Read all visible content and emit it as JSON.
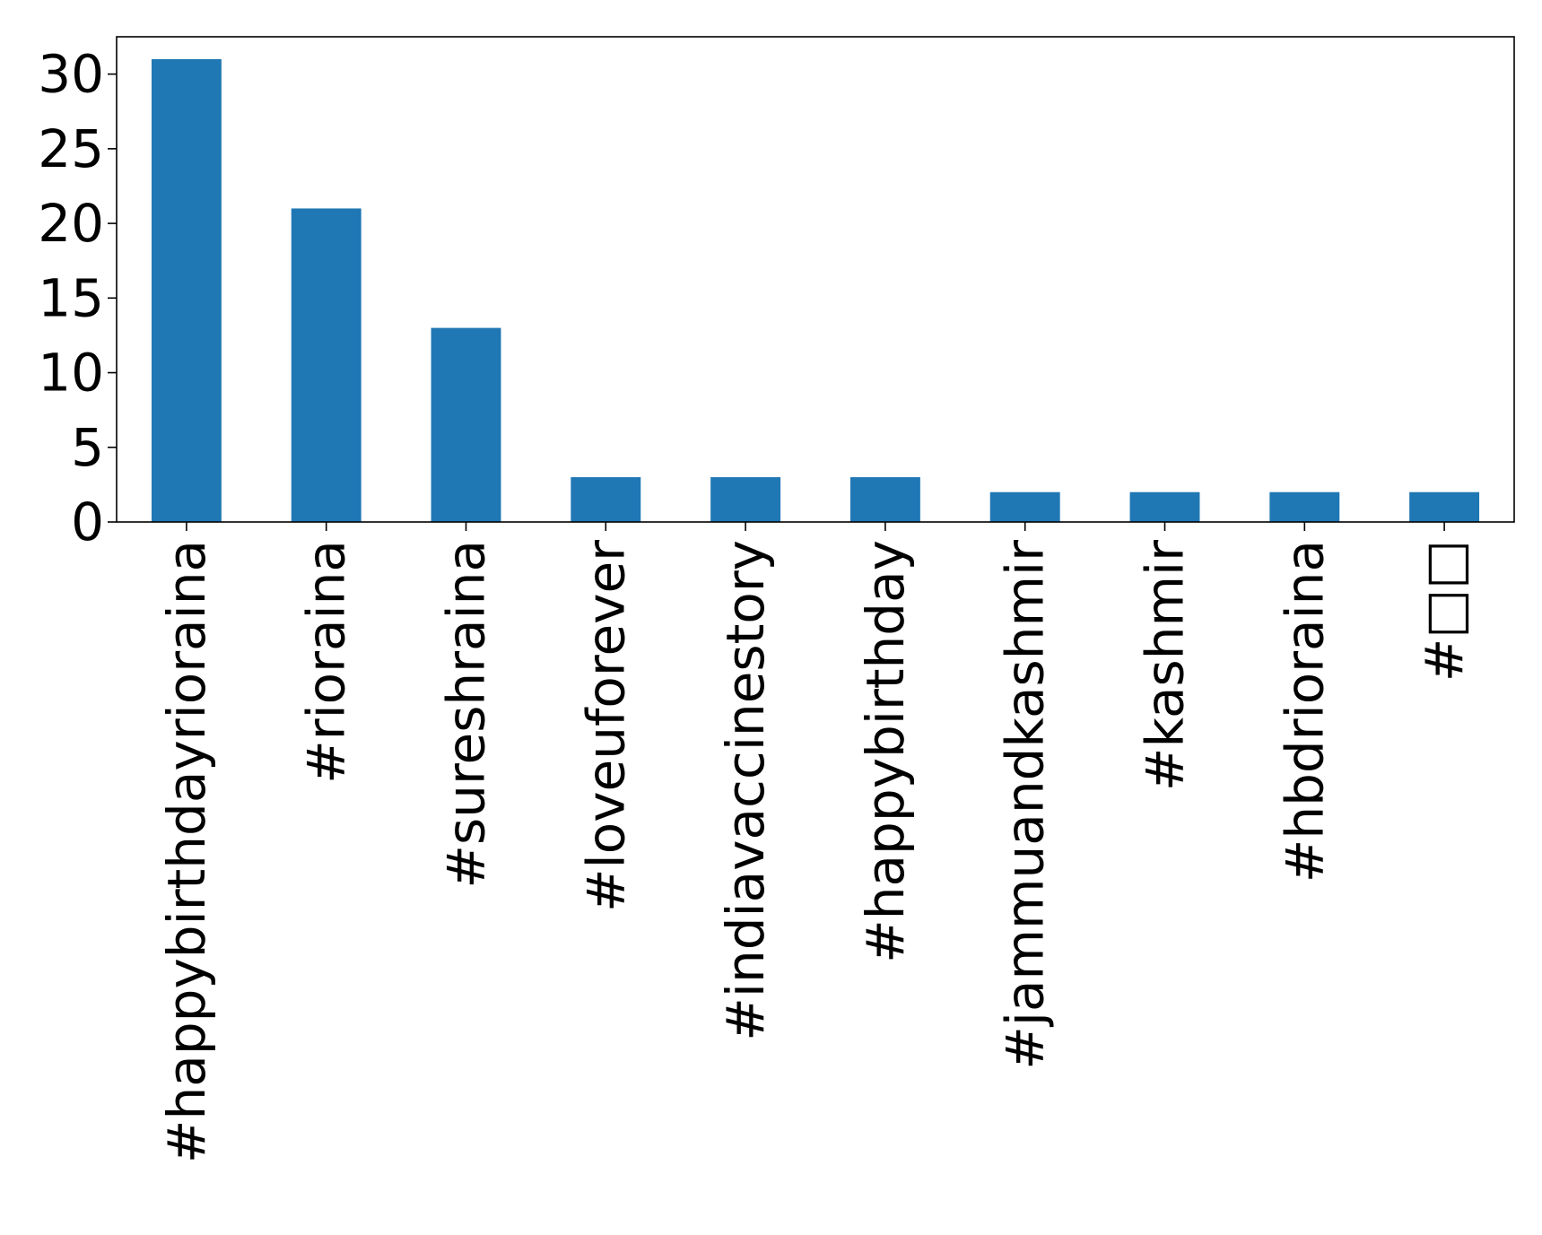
{
  "chart_data": {
    "type": "bar",
    "categories": [
      "#happybirthdayrioraina",
      "#rioraina",
      "#sureshraina",
      "#loveuforever",
      "#indiavaccinestory",
      "#happybirthday",
      "#jammuandkashmir",
      "#kashmir",
      "#hbdrioraina",
      "#□□"
    ],
    "values": [
      31,
      21,
      13,
      3,
      3,
      3,
      2,
      2,
      2,
      2
    ],
    "title": "",
    "xlabel": "",
    "ylabel": "",
    "ylim": [
      0,
      32.5
    ],
    "yticks": [
      "0",
      "5",
      "10",
      "15",
      "20",
      "25",
      "30"
    ],
    "bar_color": "#1f77b4",
    "grid": false,
    "legend": "none"
  }
}
